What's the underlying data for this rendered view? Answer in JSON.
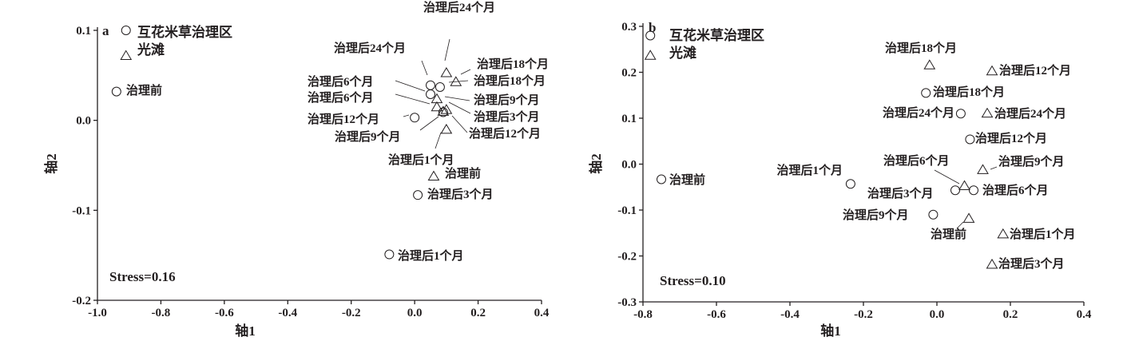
{
  "chart_data": [
    {
      "type": "scatter",
      "panel": "a",
      "xlabel": "轴1",
      "ylabel": "轴2",
      "xlim": [
        -1.0,
        0.4
      ],
      "ylim": [
        -0.2,
        0.1
      ],
      "xticks": [
        "-1.0",
        "-0.8",
        "-0.6",
        "-0.4",
        "-0.2",
        "0.0",
        "0.2",
        "0.4"
      ],
      "yticks": [
        "-0.2",
        "-0.1",
        "0.0",
        "0.1"
      ],
      "annotation": "Stress=0.16",
      "series": [
        {
          "name": "互花米草治理区",
          "marker": "circle",
          "points": [
            {
              "label": "互花米草治理区",
              "x": -0.91,
              "y": 0.1
            },
            {
              "label": "治理前",
              "x": -0.94,
              "y": 0.032
            },
            {
              "label": "治理后1个月",
              "x": -0.08,
              "y": -0.149
            },
            {
              "label": "治理后3个月",
              "x": 0.01,
              "y": -0.083
            },
            {
              "label": "治理后6个月",
              "x": 0.05,
              "y": 0.029
            },
            {
              "label": "治理后9个月",
              "x": 0.09,
              "y": 0.009
            },
            {
              "label": "治理后12个月",
              "x": 0.0,
              "y": 0.003
            },
            {
              "label": "治理后18个月",
              "x": 0.08,
              "y": 0.037
            },
            {
              "label": "治理后24个月",
              "x": 0.05,
              "y": 0.039
            }
          ]
        },
        {
          "name": "光滩",
          "marker": "triangle",
          "points": [
            {
              "label": "光滩",
              "x": -0.91,
              "y": 0.072
            },
            {
              "label": "治理前",
              "x": 0.06,
              "y": -0.062
            },
            {
              "label": "治理后1个月",
              "x": 0.1,
              "y": -0.01
            },
            {
              "label": "治理后3个月",
              "x": 0.1,
              "y": 0.012
            },
            {
              "label": "治理后6个月",
              "x": 0.07,
              "y": 0.015
            },
            {
              "label": "治理后9个月",
              "x": 0.07,
              "y": 0.024
            },
            {
              "label": "治理后12个月",
              "x": 0.09,
              "y": 0.01
            },
            {
              "label": "治理后18个月",
              "x": 0.13,
              "y": 0.043
            },
            {
              "label": "治理后24个月",
              "x": 0.1,
              "y": 0.053
            }
          ]
        }
      ]
    },
    {
      "type": "scatter",
      "panel": "b",
      "xlabel": "轴1",
      "ylabel": "轴2",
      "xlim": [
        -0.8,
        0.4
      ],
      "ylim": [
        -0.3,
        0.3
      ],
      "xticks": [
        "-0.8",
        "-0.6",
        "-0.4",
        "-0.2",
        "0.0",
        "0.2",
        "0.4"
      ],
      "yticks": [
        "-0.3",
        "-0.2",
        "-0.1",
        "0.0",
        "0.1",
        "0.2",
        "0.3"
      ],
      "annotation": "Stress=0.10",
      "series": [
        {
          "name": "互花米草治理区",
          "marker": "circle",
          "points": [
            {
              "label": "互花米草治理区",
              "x": -0.78,
              "y": 0.28
            },
            {
              "label": "治理前",
              "x": -0.75,
              "y": -0.033
            },
            {
              "label": "治理后1个月",
              "x": -0.235,
              "y": -0.043
            },
            {
              "label": "治理后3个月",
              "x": 0.05,
              "y": -0.057
            },
            {
              "label": "治理后6个月",
              "x": 0.1,
              "y": -0.057
            },
            {
              "label": "治理后9个月",
              "x": -0.01,
              "y": -0.11
            },
            {
              "label": "治理后12个月",
              "x": 0.09,
              "y": 0.054
            },
            {
              "label": "治理后18个月",
              "x": -0.03,
              "y": 0.155
            },
            {
              "label": "治理后24个月",
              "x": 0.065,
              "y": 0.11
            }
          ]
        },
        {
          "name": "光滩",
          "marker": "triangle",
          "points": [
            {
              "label": "光滩",
              "x": -0.78,
              "y": 0.237
            },
            {
              "label": "治理前",
              "x": 0.087,
              "y": -0.118
            },
            {
              "label": "治理后1个月",
              "x": 0.18,
              "y": -0.152
            },
            {
              "label": "治理后3个月",
              "x": 0.15,
              "y": -0.218
            },
            {
              "label": "治理后6个月",
              "x": 0.075,
              "y": -0.047
            },
            {
              "label": "治理后9个月",
              "x": 0.125,
              "y": -0.012
            },
            {
              "label": "治理后12个月",
              "x": 0.15,
              "y": 0.203
            },
            {
              "label": "治理后18个月",
              "x": -0.02,
              "y": 0.216
            },
            {
              "label": "治理后24个月",
              "x": 0.137,
              "y": 0.111
            }
          ]
        }
      ]
    }
  ]
}
